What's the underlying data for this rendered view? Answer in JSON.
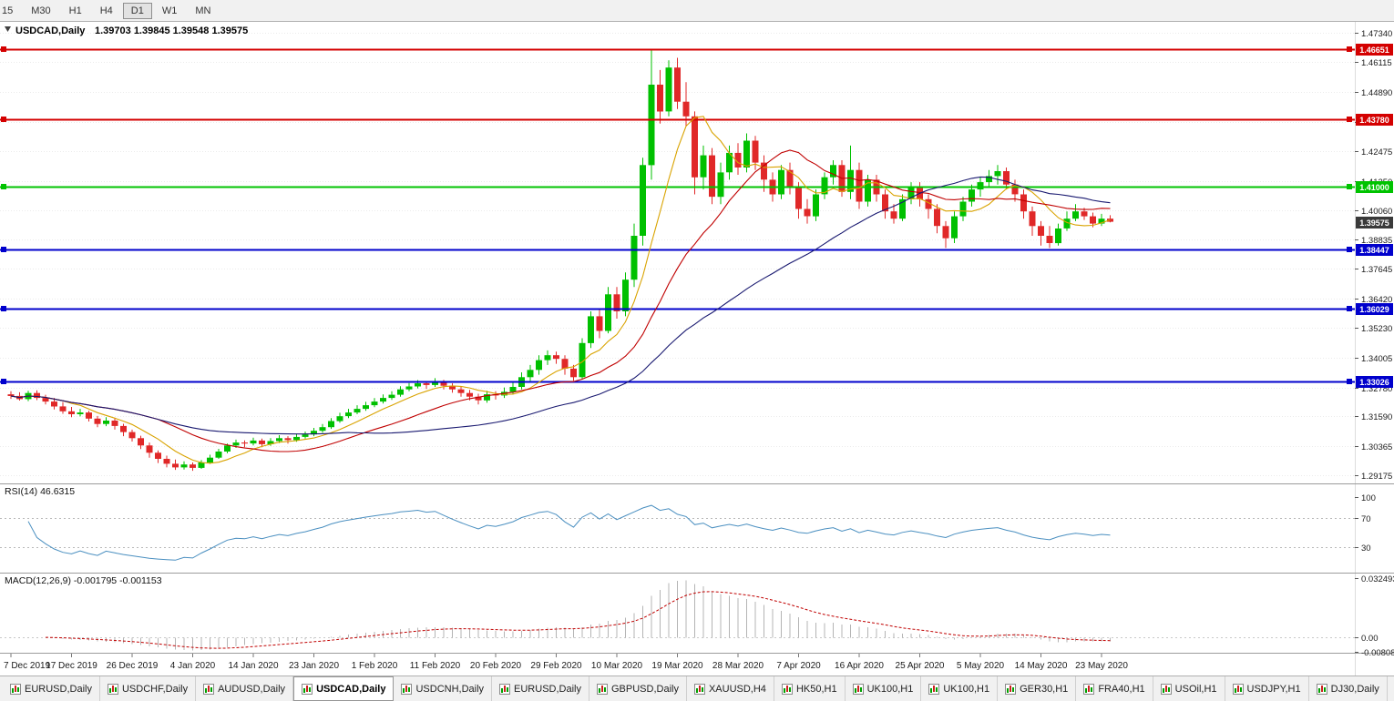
{
  "toolbar": {
    "timeframes": [
      "15",
      "M30",
      "H1",
      "H4",
      "D1",
      "W1",
      "MN"
    ],
    "active": "D1"
  },
  "chart_data": {
    "type": "candlestick",
    "symbol": "USDCAD",
    "timeframe": "Daily",
    "title": "USDCAD,Daily",
    "ohlc_display": "1.39703 1.39845 1.39548 1.39575",
    "open": "1.39703",
    "high": "1.39845",
    "low": "1.39548",
    "close": "1.39575",
    "label_every_n_candles": 7,
    "x_labels": [
      "7 Dec 2019",
      "17 Dec 2019",
      "26 Dec 2019",
      "4 Jan 2020",
      "14 Jan 2020",
      "23 Jan 2020",
      "1 Feb 2020",
      "11 Feb 2020",
      "20 Feb 2020",
      "29 Feb 2020",
      "10 Mar 2020",
      "19 Mar 2020",
      "28 Mar 2020",
      "7 Apr 2020",
      "16 Apr 2020",
      "25 Apr 2020",
      "5 May 2020",
      "14 May 2020",
      "23 May 2020"
    ],
    "price_axis": {
      "min": 1.2888,
      "max": 1.477,
      "ticks": [
        "1.47340",
        "1.46115",
        "1.44890",
        "1.43665",
        "1.42475",
        "1.41250",
        "1.40060",
        "1.38835",
        "1.37645",
        "1.36420",
        "1.35230",
        "1.34005",
        "1.32780",
        "1.31590",
        "1.30365",
        "1.29175"
      ]
    },
    "levels": [
      {
        "price": 1.46651,
        "label": "1.46651",
        "color": "#d40000"
      },
      {
        "price": 1.4378,
        "label": "1.43780",
        "color": "#d40000"
      },
      {
        "price": 1.41,
        "label": "1.41000",
        "color": "#00c300"
      },
      {
        "price": 1.38447,
        "label": "1.38447",
        "color": "#0000cc"
      },
      {
        "price": 1.36029,
        "label": "1.36029",
        "color": "#0000cc"
      },
      {
        "price": 1.33026,
        "label": "1.33026",
        "color": "#0000cc"
      }
    ],
    "current_price": {
      "price": 1.39575,
      "label": "1.39575",
      "color": "#3a3a3a"
    },
    "colors": {
      "bull": "#00c000",
      "bear": "#e02828",
      "macd_hist": "#b4b4b4",
      "macd_signal": "#c00000"
    },
    "moving_averages": [
      {
        "name": "fast",
        "period": 7,
        "color": "#d9a300"
      },
      {
        "name": "mid",
        "period": 18,
        "color": "#c00000"
      },
      {
        "name": "slow",
        "period": 40,
        "color": "#191970"
      }
    ],
    "candles": [
      [
        1.325,
        1.3262,
        1.3231,
        1.3243
      ],
      [
        1.3243,
        1.3258,
        1.3224,
        1.323
      ],
      [
        1.323,
        1.3264,
        1.3222,
        1.3255
      ],
      [
        1.3255,
        1.3266,
        1.3226,
        1.3235
      ],
      [
        1.3235,
        1.3248,
        1.3208,
        1.322
      ],
      [
        1.322,
        1.3235,
        1.3188,
        1.32
      ],
      [
        1.32,
        1.3218,
        1.317,
        1.318
      ],
      [
        1.318,
        1.3198,
        1.3156,
        1.3168
      ],
      [
        1.3168,
        1.319,
        1.3159,
        1.3175
      ],
      [
        1.3175,
        1.3182,
        1.3138,
        1.315
      ],
      [
        1.315,
        1.3161,
        1.3115,
        1.3128
      ],
      [
        1.3128,
        1.3156,
        1.3119,
        1.3142
      ],
      [
        1.3142,
        1.315,
        1.3105,
        1.312
      ],
      [
        1.312,
        1.3129,
        1.3078,
        1.3095
      ],
      [
        1.3095,
        1.3105,
        1.3056,
        1.307
      ],
      [
        1.307,
        1.308,
        1.3025,
        1.304
      ],
      [
        1.304,
        1.3052,
        1.299,
        1.301
      ],
      [
        1.301,
        1.302,
        1.2968,
        1.2985
      ],
      [
        1.2985,
        1.2998,
        1.295,
        1.2965
      ],
      [
        1.2965,
        1.2982,
        1.294,
        1.295
      ],
      [
        1.295,
        1.2975,
        1.2941,
        1.2962
      ],
      [
        1.2962,
        1.297,
        1.2936,
        1.2948
      ],
      [
        1.2948,
        1.298,
        1.2944,
        1.297
      ],
      [
        1.297,
        1.3002,
        1.2964,
        1.299
      ],
      [
        1.299,
        1.3026,
        1.2985,
        1.3015
      ],
      [
        1.3015,
        1.3048,
        1.3008,
        1.304
      ],
      [
        1.304,
        1.3064,
        1.303,
        1.3052
      ],
      [
        1.3052,
        1.3061,
        1.3033,
        1.3048
      ],
      [
        1.3048,
        1.3072,
        1.304,
        1.306
      ],
      [
        1.306,
        1.3068,
        1.3033,
        1.3045
      ],
      [
        1.3045,
        1.307,
        1.3038,
        1.3058
      ],
      [
        1.3058,
        1.3082,
        1.305,
        1.307
      ],
      [
        1.307,
        1.3078,
        1.3048,
        1.3062
      ],
      [
        1.3062,
        1.3088,
        1.3055,
        1.3075
      ],
      [
        1.3075,
        1.3097,
        1.3068,
        1.3085
      ],
      [
        1.3085,
        1.3112,
        1.3078,
        1.31
      ],
      [
        1.31,
        1.3128,
        1.3092,
        1.3115
      ],
      [
        1.3115,
        1.3152,
        1.3108,
        1.314
      ],
      [
        1.314,
        1.3174,
        1.3133,
        1.316
      ],
      [
        1.316,
        1.319,
        1.3152,
        1.3175
      ],
      [
        1.3175,
        1.3205,
        1.3168,
        1.319
      ],
      [
        1.319,
        1.3219,
        1.3182,
        1.3205
      ],
      [
        1.3205,
        1.3234,
        1.3197,
        1.322
      ],
      [
        1.322,
        1.3249,
        1.3212,
        1.3235
      ],
      [
        1.3235,
        1.3262,
        1.3227,
        1.3248
      ],
      [
        1.3248,
        1.3283,
        1.324,
        1.327
      ],
      [
        1.327,
        1.3296,
        1.3262,
        1.3282
      ],
      [
        1.3282,
        1.3308,
        1.3274,
        1.3295
      ],
      [
        1.3295,
        1.3304,
        1.3272,
        1.3288
      ],
      [
        1.3288,
        1.3316,
        1.328,
        1.33
      ],
      [
        1.33,
        1.3309,
        1.327,
        1.3285
      ],
      [
        1.3285,
        1.3295,
        1.3256,
        1.327
      ],
      [
        1.327,
        1.328,
        1.324,
        1.3255
      ],
      [
        1.3255,
        1.3268,
        1.3225,
        1.324
      ],
      [
        1.324,
        1.3252,
        1.3208,
        1.3225
      ],
      [
        1.3225,
        1.3264,
        1.3215,
        1.325
      ],
      [
        1.325,
        1.3262,
        1.3228,
        1.3245
      ],
      [
        1.3245,
        1.3278,
        1.3235,
        1.326
      ],
      [
        1.326,
        1.33,
        1.325,
        1.328
      ],
      [
        1.328,
        1.334,
        1.327,
        1.332
      ],
      [
        1.332,
        1.337,
        1.33,
        1.335
      ],
      [
        1.335,
        1.341,
        1.333,
        1.339
      ],
      [
        1.339,
        1.343,
        1.337,
        1.341
      ],
      [
        1.341,
        1.3425,
        1.3375,
        1.3395
      ],
      [
        1.3395,
        1.341,
        1.333,
        1.3355
      ],
      [
        1.3355,
        1.337,
        1.3305,
        1.332
      ],
      [
        1.332,
        1.348,
        1.331,
        1.346
      ],
      [
        1.346,
        1.359,
        1.344,
        1.357
      ],
      [
        1.357,
        1.36,
        1.348,
        1.351
      ],
      [
        1.351,
        1.369,
        1.35,
        1.366
      ],
      [
        1.366,
        1.369,
        1.356,
        1.359
      ],
      [
        1.359,
        1.375,
        1.357,
        1.372
      ],
      [
        1.372,
        1.395,
        1.369,
        1.39
      ],
      [
        1.39,
        1.422,
        1.386,
        1.419
      ],
      [
        1.419,
        1.4665,
        1.413,
        1.452
      ],
      [
        1.452,
        1.458,
        1.436,
        1.441
      ],
      [
        1.441,
        1.462,
        1.439,
        1.459
      ],
      [
        1.459,
        1.463,
        1.442,
        1.445
      ],
      [
        1.445,
        1.453,
        1.435,
        1.439
      ],
      [
        1.439,
        1.441,
        1.407,
        1.414
      ],
      [
        1.414,
        1.427,
        1.409,
        1.423
      ],
      [
        1.423,
        1.426,
        1.403,
        1.406
      ],
      [
        1.406,
        1.42,
        1.403,
        1.416
      ],
      [
        1.416,
        1.427,
        1.413,
        1.424
      ],
      [
        1.424,
        1.428,
        1.415,
        1.418
      ],
      [
        1.418,
        1.432,
        1.416,
        1.429
      ],
      [
        1.429,
        1.431,
        1.417,
        1.42
      ],
      [
        1.42,
        1.423,
        1.408,
        1.413
      ],
      [
        1.413,
        1.416,
        1.404,
        1.407
      ],
      [
        1.407,
        1.419,
        1.405,
        1.417
      ],
      [
        1.417,
        1.42,
        1.407,
        1.41
      ],
      [
        1.41,
        1.412,
        1.397,
        1.401
      ],
      [
        1.401,
        1.405,
        1.395,
        1.398
      ],
      [
        1.398,
        1.409,
        1.396,
        1.407
      ],
      [
        1.407,
        1.416,
        1.405,
        1.414
      ],
      [
        1.414,
        1.421,
        1.411,
        1.419
      ],
      [
        1.419,
        1.421,
        1.406,
        1.408
      ],
      [
        1.408,
        1.427,
        1.405,
        1.417
      ],
      [
        1.417,
        1.42,
        1.401,
        1.404
      ],
      [
        1.404,
        1.415,
        1.402,
        1.413
      ],
      [
        1.413,
        1.415,
        1.404,
        1.407
      ],
      [
        1.407,
        1.409,
        1.397,
        1.4
      ],
      [
        1.4,
        1.403,
        1.395,
        1.397
      ],
      [
        1.397,
        1.407,
        1.396,
        1.405
      ],
      [
        1.405,
        1.412,
        1.403,
        1.41
      ],
      [
        1.41,
        1.412,
        1.402,
        1.405
      ],
      [
        1.405,
        1.407,
        1.397,
        1.401
      ],
      [
        1.401,
        1.403,
        1.391,
        1.394
      ],
      [
        1.394,
        1.396,
        1.385,
        1.389
      ],
      [
        1.389,
        1.4,
        1.387,
        1.398
      ],
      [
        1.398,
        1.406,
        1.396,
        1.404
      ],
      [
        1.404,
        1.411,
        1.402,
        1.409
      ],
      [
        1.409,
        1.414,
        1.406,
        1.412
      ],
      [
        1.412,
        1.417,
        1.41,
        1.4145
      ],
      [
        1.4145,
        1.419,
        1.411,
        1.4165
      ],
      [
        1.4165,
        1.418,
        1.409,
        1.411
      ],
      [
        1.411,
        1.413,
        1.404,
        1.407
      ],
      [
        1.407,
        1.409,
        1.397,
        1.4
      ],
      [
        1.4,
        1.402,
        1.39,
        1.394
      ],
      [
        1.394,
        1.396,
        1.386,
        1.39
      ],
      [
        1.39,
        1.394,
        1.385,
        1.387
      ],
      [
        1.387,
        1.395,
        1.386,
        1.393
      ],
      [
        1.393,
        1.4,
        1.392,
        1.397
      ],
      [
        1.397,
        1.403,
        1.396,
        1.4
      ],
      [
        1.4,
        1.4015,
        1.3965,
        1.398
      ],
      [
        1.398,
        1.3995,
        1.3935,
        1.395
      ],
      [
        1.395,
        1.399,
        1.394,
        1.397
      ],
      [
        1.39703,
        1.39845,
        1.39548,
        1.39575
      ]
    ],
    "rsi": {
      "label": "RSI(14) 46.6315",
      "period": 14,
      "value": 46.6315,
      "color": "#4a8fc0",
      "levels": [
        70,
        30
      ],
      "axis_labels": [
        "100",
        "70",
        "30"
      ],
      "axis_values": [
        100,
        70,
        30
      ]
    },
    "macd": {
      "label": "MACD(12,26,9) -0.001795 -0.001153",
      "fast": 12,
      "slow": 26,
      "signal": 9,
      "macd_value": -0.001795,
      "signal_value": -0.001153,
      "axis": [
        {
          "value": 0.032493,
          "label": "0.032493"
        },
        {
          "value": 0,
          "label": "0.00"
        },
        {
          "value": -0.00808,
          "label": "-0.00808"
        }
      ]
    }
  },
  "tabs": [
    {
      "label": "EURUSD,Daily"
    },
    {
      "label": "USDCHF,Daily"
    },
    {
      "label": "AUDUSD,Daily"
    },
    {
      "label": "USDCAD,Daily"
    },
    {
      "label": "USDCNH,Daily"
    },
    {
      "label": "EURUSD,Daily"
    },
    {
      "label": "GBPUSD,Daily"
    },
    {
      "label": "XAUUSD,H4"
    },
    {
      "label": "HK50,H1"
    },
    {
      "label": "UK100,H1"
    },
    {
      "label": "UK100,H1"
    },
    {
      "label": "GER30,H1"
    },
    {
      "label": "FRA40,H1"
    },
    {
      "label": "USOil,H1"
    },
    {
      "label": "USDJPY,H1"
    },
    {
      "label": "DJ30,Daily"
    }
  ],
  "active_tab_index": 3
}
